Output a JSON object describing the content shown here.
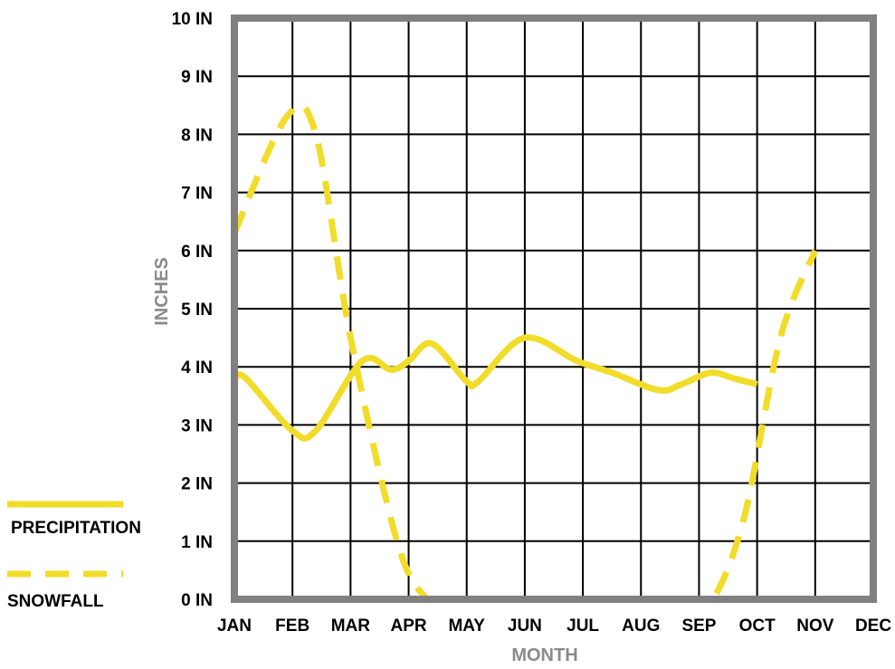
{
  "chart_data": {
    "type": "line",
    "title": "",
    "xlabel": "MONTH",
    "ylabel": "INCHES",
    "categories": [
      "JAN",
      "FEB",
      "MAR",
      "APR",
      "MAY",
      "JUN",
      "JUL",
      "AUG",
      "SEP",
      "OCT",
      "NOV",
      "DEC"
    ],
    "y_ticks": [
      "0 IN",
      "1 IN",
      "2 IN",
      "3 IN",
      "4 IN",
      "5 IN",
      "6 IN",
      "7 IN",
      "8 IN",
      "9 IN",
      "10 IN"
    ],
    "ylim": [
      0,
      10
    ],
    "grid": true,
    "legend_position": "bottom-left",
    "series": [
      {
        "name": "PRECIPITATION",
        "style": "solid",
        "color": "#f2dc2a",
        "points": [
          [
            0,
            3.8
          ],
          [
            0.2,
            3.8
          ],
          [
            1,
            2.9
          ],
          [
            1.4,
            2.9
          ],
          [
            2.2,
            4.1
          ],
          [
            2.7,
            3.95
          ],
          [
            3,
            4.1
          ],
          [
            3.4,
            4.4
          ],
          [
            4,
            3.75
          ],
          [
            4.2,
            3.75
          ],
          [
            5,
            4.5
          ],
          [
            5.9,
            4.1
          ],
          [
            6.5,
            3.9
          ],
          [
            7.3,
            3.6
          ],
          [
            7.7,
            3.7
          ],
          [
            8.2,
            3.9
          ],
          [
            8.6,
            3.8
          ],
          [
            9,
            3.7
          ]
        ]
      },
      {
        "name": "SNOWFALL",
        "style": "dashed",
        "color": "#f2dc2a",
        "points": [
          [
            0,
            6.3
          ],
          [
            0.9,
            8.3
          ],
          [
            1.4,
            8
          ],
          [
            2,
            4.5
          ],
          [
            2.8,
            1
          ],
          [
            3.3,
            0.02
          ],
          [
            3.6,
            0
          ],
          [
            8,
            0
          ],
          [
            8.3,
            0.1
          ],
          [
            8.8,
            1.5
          ],
          [
            9.4,
            4.5
          ],
          [
            10,
            6
          ]
        ]
      }
    ],
    "colors": {
      "line": "#f2dc2a",
      "frame": "#808080",
      "grid": "#000000",
      "axis_title": "#8a8a8a"
    }
  }
}
